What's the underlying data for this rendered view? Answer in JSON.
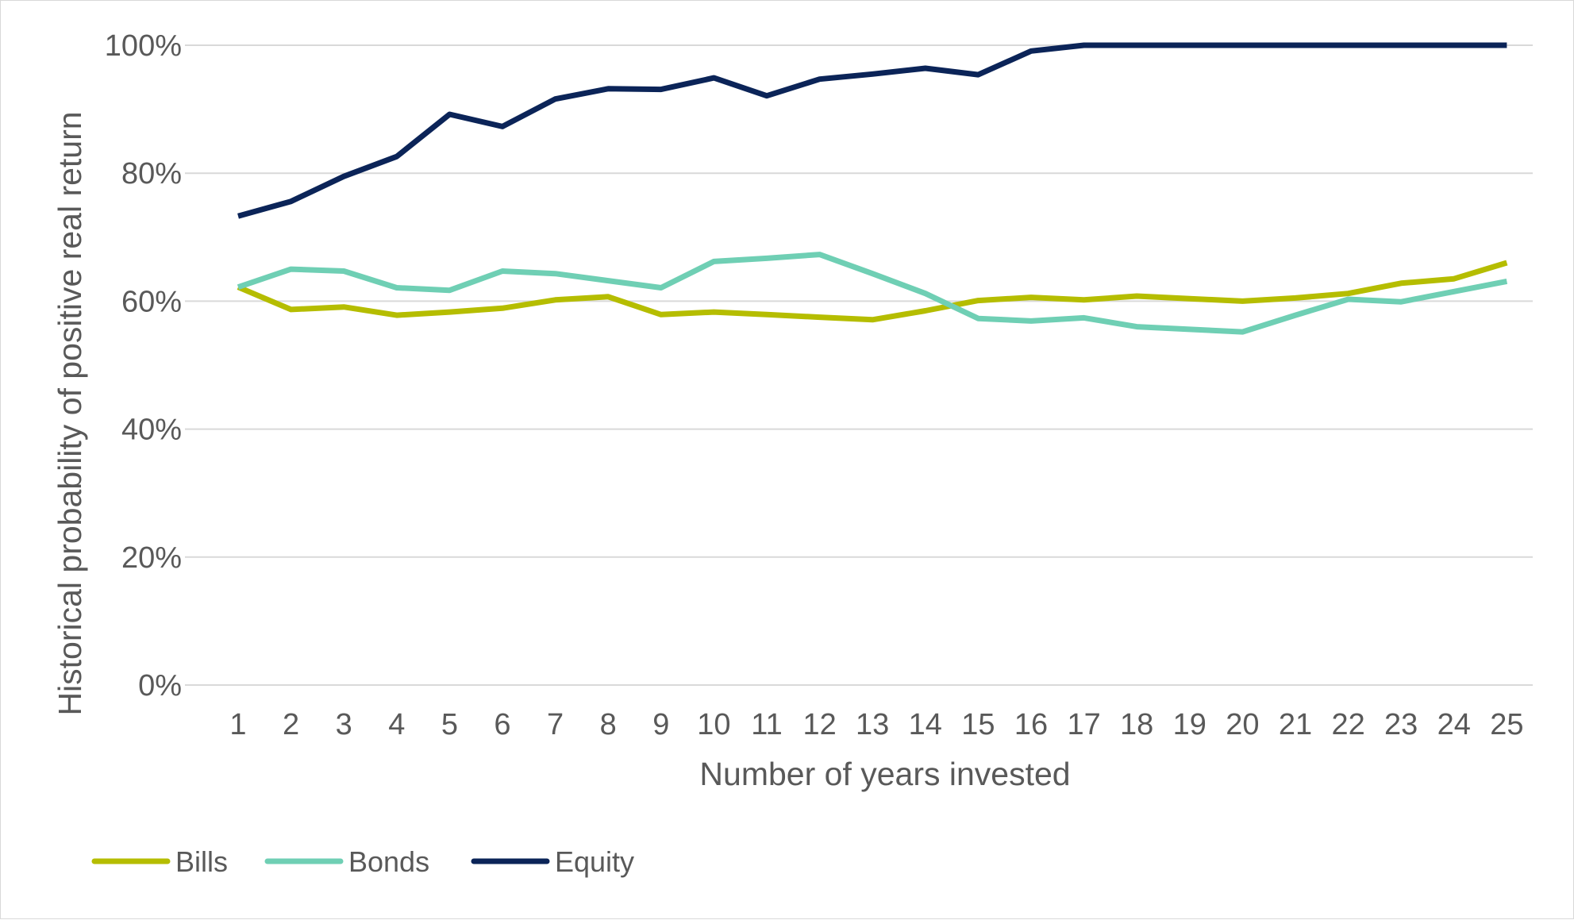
{
  "chart_data": {
    "type": "line",
    "title": "",
    "xlabel": "Number of years invested",
    "ylabel": "Historical probability of positive real return",
    "categories": [
      "1",
      "2",
      "3",
      "4",
      "5",
      "6",
      "7",
      "8",
      "9",
      "10",
      "11",
      "12",
      "13",
      "14",
      "15",
      "16",
      "17",
      "18",
      "19",
      "20",
      "21",
      "22",
      "23",
      "24",
      "25"
    ],
    "y_ticks": [
      "0%",
      "20%",
      "40%",
      "60%",
      "80%",
      "100%"
    ],
    "ylim": [
      0,
      100
    ],
    "grid": "horizontal",
    "legend_position": "bottom-left",
    "series": [
      {
        "name": "Bills",
        "color": "#b5bd00",
        "values": [
          62.2,
          58.7,
          59.1,
          57.8,
          58.3,
          58.9,
          60.2,
          60.7,
          57.9,
          58.3,
          57.9,
          57.5,
          57.1,
          58.5,
          60.1,
          60.6,
          60.2,
          60.8,
          60.4,
          60.0,
          60.5,
          61.2,
          62.8,
          63.5,
          66.0
        ]
      },
      {
        "name": "Bonds",
        "color": "#6fcfb4",
        "values": [
          62.2,
          65.0,
          64.7,
          62.1,
          61.7,
          64.7,
          64.3,
          63.2,
          62.1,
          66.2,
          66.7,
          67.3,
          64.3,
          61.2,
          57.3,
          56.9,
          57.4,
          56.0,
          55.6,
          55.2,
          57.8,
          60.3,
          59.9,
          61.5,
          63.1
        ]
      },
      {
        "name": "Equity",
        "color": "#0b2458",
        "values": [
          73.3,
          75.6,
          79.5,
          82.6,
          89.2,
          87.3,
          91.6,
          93.2,
          93.1,
          94.9,
          92.1,
          94.7,
          95.5,
          96.4,
          95.4,
          99.1,
          100,
          100,
          100,
          100,
          100,
          100,
          100,
          100,
          100
        ]
      }
    ]
  }
}
